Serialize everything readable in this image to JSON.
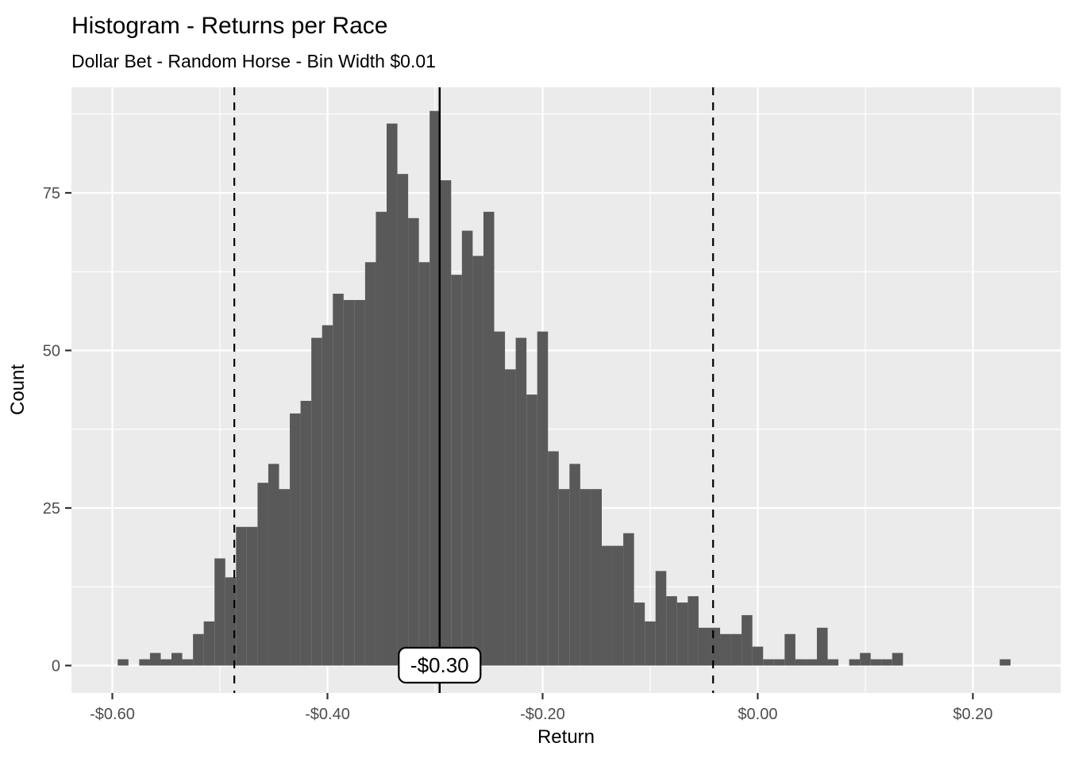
{
  "chart_data": {
    "type": "bar",
    "subtype": "histogram",
    "title": "Histogram - Returns per Race",
    "subtitle": "Dollar Bet - Random Horse - Bin Width $0.01",
    "xlabel": "Return",
    "ylabel": "Count",
    "bin_width": 0.01,
    "first_bin_left_edge": -0.595,
    "counts": [
      1,
      0,
      1,
      2,
      1,
      2,
      1,
      5,
      7,
      17,
      14,
      22,
      22,
      29,
      32,
      28,
      40,
      42,
      52,
      54,
      59,
      58,
      58,
      64,
      72,
      86,
      78,
      71,
      64,
      88,
      77,
      62,
      69,
      65,
      72,
      53,
      47,
      52,
      43,
      53,
      34,
      28,
      32,
      28,
      28,
      19,
      19,
      21,
      10,
      7,
      15,
      11,
      10,
      11,
      6,
      6,
      5,
      5,
      8,
      3,
      1,
      1,
      5,
      1,
      1,
      6,
      1,
      0,
      1,
      2,
      1,
      1,
      2,
      0,
      0,
      0,
      0,
      0,
      0,
      0,
      0,
      0,
      1
    ],
    "x_ticks": [
      {
        "value": -0.6,
        "label": "-$0.60"
      },
      {
        "value": -0.4,
        "label": "-$0.40"
      },
      {
        "value": -0.2,
        "label": "-$0.20"
      },
      {
        "value": 0.0,
        "label": "$0.00"
      },
      {
        "value": 0.2,
        "label": "$0.20"
      }
    ],
    "y_ticks": [
      {
        "value": 0,
        "label": "0"
      },
      {
        "value": 25,
        "label": "25"
      },
      {
        "value": 50,
        "label": "50"
      },
      {
        "value": 75,
        "label": "75"
      }
    ],
    "x_minor_gridlines": [
      -0.5,
      -0.3,
      -0.1,
      0.1
    ],
    "y_minor_gridlines": [
      12.5,
      37.5,
      62.5,
      87.5
    ],
    "xlim": [
      -0.638,
      0.2816
    ],
    "ylim": [
      -4.35,
      91.75
    ],
    "grid": "on",
    "legend": "none",
    "annotation": {
      "solid_vline_value": -0.2957,
      "solid_vline_label": "-$0.30",
      "dashed_vline_values": [
        -0.4866,
        -0.0415
      ]
    },
    "colors": {
      "bar_fill": "#595959",
      "panel_background": "#EBEBEB",
      "gridline": "#FFFFFF",
      "line": "#000000",
      "tick_mark": "#333333",
      "axis_text": "#4D4D4D",
      "title_text": "#000000",
      "label_box_fill": "#FFFFFF",
      "label_box_border": "#000000"
    }
  }
}
